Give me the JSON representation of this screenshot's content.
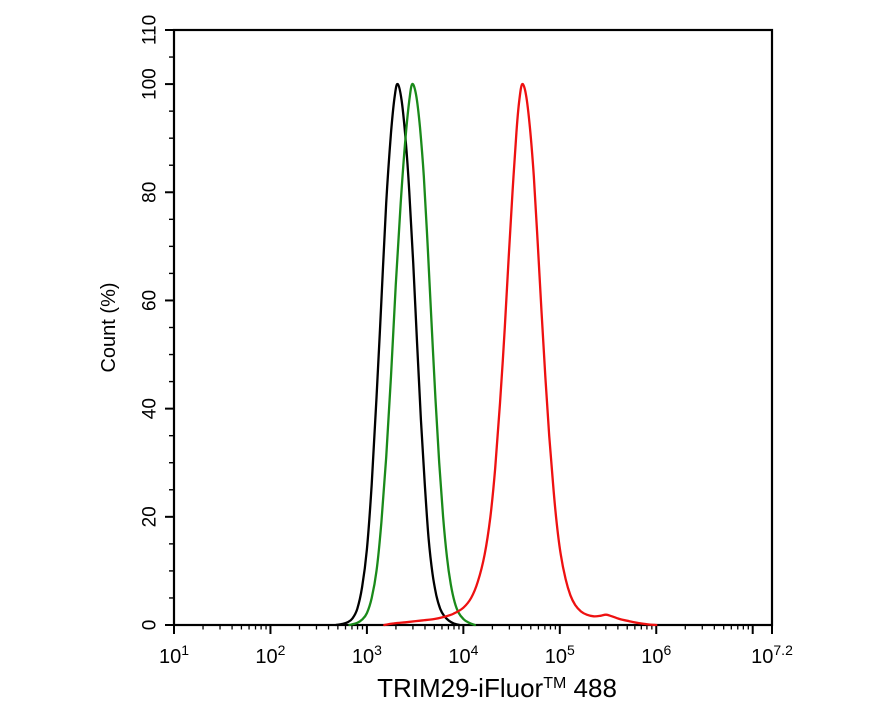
{
  "figure": {
    "background": "#ffffff",
    "description": "Flow cytometry overlay histogram, three traces on log fluorescence axis"
  },
  "chart_data": {
    "type": "line",
    "title": "",
    "xlabel": "TRIM29-iFluor™ 488",
    "ylabel": "Count (%)",
    "axis_color": "#000000",
    "x_axis": {
      "scale": "log10",
      "log_min": 1,
      "log_max": 7.2,
      "title_parts": [
        {
          "text": "TRIM29-iFluor",
          "sup": false
        },
        {
          "text": "TM",
          "sup": true
        },
        {
          "text": " 488",
          "sup": false
        }
      ],
      "major_ticks": [
        {
          "log": 1,
          "base": "10",
          "exp": "1",
          "labeled": true
        },
        {
          "log": 2,
          "base": "10",
          "exp": "2",
          "labeled": true
        },
        {
          "log": 3,
          "base": "10",
          "exp": "3",
          "labeled": true
        },
        {
          "log": 4,
          "base": "10",
          "exp": "4",
          "labeled": true
        },
        {
          "log": 5,
          "base": "10",
          "exp": "5",
          "labeled": true
        },
        {
          "log": 6,
          "base": "10",
          "exp": "6",
          "labeled": true
        },
        {
          "log": 7,
          "base": "10",
          "exp": "7",
          "labeled": false
        },
        {
          "log": 7.2,
          "base": "10",
          "exp": "7.2",
          "labeled": true
        }
      ],
      "minor_ticks": "logarithmic 2-9 per decade"
    },
    "y_axis": {
      "min": 0,
      "max": 110,
      "title": "Count (%)",
      "major_ticks": [
        0,
        20,
        40,
        60,
        80,
        100,
        110
      ],
      "minor_step": 5
    },
    "grid": false,
    "legend": "none",
    "x_unit": "points given as log10(fluorescence intensity)",
    "y_unit": "percent of max count",
    "series": [
      {
        "name": "curve-black",
        "color": "#000000",
        "peak_x_log10": 3.32,
        "peak_y": 100,
        "points": [
          [
            2.68,
            0
          ],
          [
            2.75,
            0.2
          ],
          [
            2.8,
            0.5
          ],
          [
            2.85,
            1.2
          ],
          [
            2.9,
            3
          ],
          [
            2.95,
            7
          ],
          [
            3.0,
            14
          ],
          [
            3.05,
            26
          ],
          [
            3.1,
            42
          ],
          [
            3.15,
            60
          ],
          [
            3.2,
            78
          ],
          [
            3.25,
            91
          ],
          [
            3.29,
            98
          ],
          [
            3.32,
            100
          ],
          [
            3.36,
            97
          ],
          [
            3.4,
            90
          ],
          [
            3.44,
            80
          ],
          [
            3.48,
            67
          ],
          [
            3.52,
            52
          ],
          [
            3.56,
            38
          ],
          [
            3.6,
            26
          ],
          [
            3.64,
            16
          ],
          [
            3.68,
            9.5
          ],
          [
            3.72,
            5.5
          ],
          [
            3.76,
            3
          ],
          [
            3.8,
            1.7
          ],
          [
            3.85,
            0.8
          ],
          [
            3.9,
            0.3
          ],
          [
            3.96,
            0
          ]
        ]
      },
      {
        "name": "curve-green",
        "color": "#1a8a1a",
        "peak_x_log10": 3.47,
        "peak_y": 100,
        "points": [
          [
            2.82,
            0
          ],
          [
            2.9,
            0.4
          ],
          [
            2.95,
            1
          ],
          [
            3.0,
            2.2
          ],
          [
            3.05,
            5
          ],
          [
            3.1,
            10
          ],
          [
            3.15,
            19
          ],
          [
            3.2,
            31
          ],
          [
            3.25,
            46
          ],
          [
            3.3,
            63
          ],
          [
            3.35,
            78
          ],
          [
            3.4,
            90
          ],
          [
            3.44,
            97
          ],
          [
            3.47,
            100
          ],
          [
            3.51,
            98
          ],
          [
            3.55,
            92
          ],
          [
            3.59,
            83
          ],
          [
            3.63,
            70
          ],
          [
            3.67,
            56
          ],
          [
            3.71,
            42
          ],
          [
            3.75,
            30
          ],
          [
            3.79,
            20
          ],
          [
            3.83,
            12.5
          ],
          [
            3.87,
            7.5
          ],
          [
            3.91,
            4.2
          ],
          [
            3.95,
            2.3
          ],
          [
            4.0,
            1.1
          ],
          [
            4.06,
            0.4
          ],
          [
            4.12,
            0
          ]
        ]
      },
      {
        "name": "curve-red",
        "color": "#ee1111",
        "peak_x_log10": 4.61,
        "peak_y": 100,
        "points": [
          [
            3.18,
            0
          ],
          [
            3.28,
            0.3
          ],
          [
            3.4,
            0.5
          ],
          [
            3.55,
            0.8
          ],
          [
            3.7,
            1.1
          ],
          [
            3.8,
            1.5
          ],
          [
            3.9,
            2.1
          ],
          [
            4.0,
            3.2
          ],
          [
            4.08,
            5
          ],
          [
            4.15,
            8
          ],
          [
            4.22,
            13
          ],
          [
            4.28,
            20
          ],
          [
            4.33,
            29
          ],
          [
            4.38,
            41
          ],
          [
            4.43,
            55
          ],
          [
            4.47,
            68
          ],
          [
            4.51,
            80
          ],
          [
            4.55,
            91
          ],
          [
            4.58,
            97
          ],
          [
            4.61,
            100
          ],
          [
            4.65,
            98
          ],
          [
            4.69,
            92
          ],
          [
            4.73,
            83
          ],
          [
            4.77,
            71
          ],
          [
            4.81,
            58
          ],
          [
            4.85,
            46
          ],
          [
            4.89,
            35
          ],
          [
            4.93,
            26
          ],
          [
            4.97,
            18.5
          ],
          [
            5.01,
            13
          ],
          [
            5.06,
            8.5
          ],
          [
            5.11,
            5.5
          ],
          [
            5.16,
            3.7
          ],
          [
            5.22,
            2.5
          ],
          [
            5.28,
            1.9
          ],
          [
            5.35,
            1.6
          ],
          [
            5.42,
            1.7
          ],
          [
            5.48,
            1.9
          ],
          [
            5.54,
            1.6
          ],
          [
            5.62,
            1.1
          ],
          [
            5.72,
            0.7
          ],
          [
            5.82,
            0.35
          ],
          [
            5.93,
            0.1
          ],
          [
            6.0,
            0
          ]
        ]
      }
    ]
  }
}
